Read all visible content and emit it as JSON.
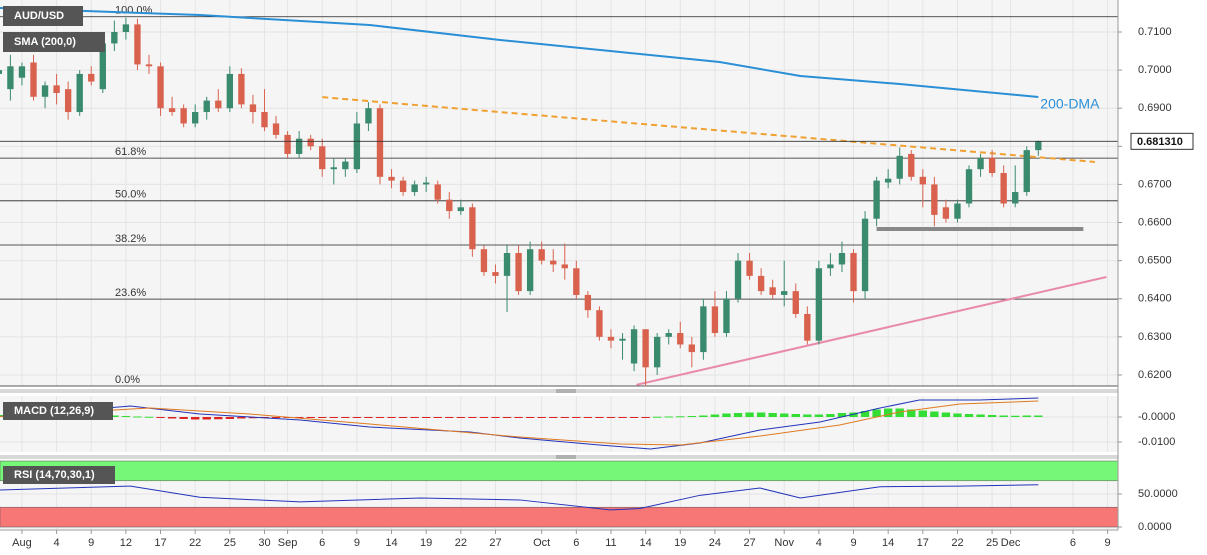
{
  "chart_data": {
    "type": "candlestick",
    "title": "AUD/USD",
    "up_color": "#3a8a6e",
    "down_color": "#d9624e",
    "ylim": [
      0.6171,
      0.7184
    ],
    "yticks": [
      {
        "value": 0.71,
        "label": "0.7100"
      },
      {
        "value": 0.7,
        "label": "0.7000"
      },
      {
        "value": 0.69,
        "label": "0.6900"
      },
      {
        "value": 0.68,
        "label": "0.6800"
      },
      {
        "value": 0.67,
        "label": "0.6700"
      },
      {
        "value": 0.66,
        "label": "0.6600"
      },
      {
        "value": 0.65,
        "label": "0.6500"
      },
      {
        "value": 0.64,
        "label": "0.6400"
      },
      {
        "value": 0.63,
        "label": "0.6300"
      },
      {
        "value": 0.62,
        "label": "0.6200"
      }
    ],
    "xlim": [
      -1.9,
      94.9
    ],
    "xticks": [
      {
        "value": 0,
        "label": "Aug"
      },
      {
        "value": 3,
        "label": "4"
      },
      {
        "value": 6,
        "label": "9"
      },
      {
        "value": 9,
        "label": "12"
      },
      {
        "value": 12,
        "label": "17"
      },
      {
        "value": 15,
        "label": "22"
      },
      {
        "value": 18,
        "label": "25"
      },
      {
        "value": 21,
        "label": "30"
      },
      {
        "value": 23,
        "label": "Sep"
      },
      {
        "value": 26,
        "label": "6"
      },
      {
        "value": 29,
        "label": "9"
      },
      {
        "value": 32,
        "label": "14"
      },
      {
        "value": 35,
        "label": "19"
      },
      {
        "value": 38,
        "label": "22"
      },
      {
        "value": 41,
        "label": "27"
      },
      {
        "value": 45,
        "label": "Oct"
      },
      {
        "value": 48,
        "label": "6"
      },
      {
        "value": 51,
        "label": "11"
      },
      {
        "value": 54,
        "label": "14"
      },
      {
        "value": 57,
        "label": "19"
      },
      {
        "value": 60,
        "label": "24"
      },
      {
        "value": 63,
        "label": "27"
      },
      {
        "value": 66,
        "label": "Nov"
      },
      {
        "value": 69,
        "label": "4"
      },
      {
        "value": 72,
        "label": "9"
      },
      {
        "value": 75,
        "label": "14"
      },
      {
        "value": 78,
        "label": "17"
      },
      {
        "value": 81,
        "label": "22"
      },
      {
        "value": 84,
        "label": "25"
      },
      {
        "value": 85.6,
        "label": "Dec"
      },
      {
        "value": 91,
        "label": "6"
      },
      {
        "value": 94,
        "label": "9"
      }
    ],
    "x": [
      -2,
      -1,
      0,
      1,
      2,
      3,
      4,
      5,
      6,
      7,
      8,
      9,
      10,
      11,
      12,
      13,
      14,
      15,
      16,
      17,
      18,
      19,
      20,
      21,
      22,
      23,
      24,
      25,
      26,
      27,
      28,
      29,
      30,
      31,
      32,
      33,
      34,
      35,
      36,
      37,
      38,
      39,
      40,
      41,
      42,
      43,
      44,
      45,
      46,
      47,
      48,
      49,
      50,
      51,
      52,
      53,
      54,
      55,
      56,
      57,
      58,
      59,
      60,
      61,
      62,
      63,
      64,
      65,
      66,
      67,
      68,
      69,
      70,
      71,
      72,
      73,
      74,
      75,
      76,
      77,
      78,
      79,
      80,
      81,
      82,
      83,
      84,
      85,
      86,
      87,
      88
    ],
    "candles": [
      [
        0.699,
        0.701,
        0.695,
        0.7
      ],
      [
        0.695,
        0.704,
        0.692,
        0.701
      ],
      [
        0.698,
        0.702,
        0.696,
        0.701
      ],
      [
        0.702,
        0.704,
        0.692,
        0.693
      ],
      [
        0.693,
        0.697,
        0.69,
        0.696
      ],
      [
        0.696,
        0.699,
        0.691,
        0.694
      ],
      [
        0.695,
        0.697,
        0.687,
        0.689
      ],
      [
        0.689,
        0.7,
        0.688,
        0.699
      ],
      [
        0.699,
        0.701,
        0.696,
        0.697
      ],
      [
        0.695,
        0.709,
        0.694,
        0.707
      ],
      [
        0.707,
        0.713,
        0.705,
        0.71
      ],
      [
        0.71,
        0.7137,
        0.708,
        0.712
      ],
      [
        0.712,
        0.7135,
        0.7,
        0.7015
      ],
      [
        0.7015,
        0.704,
        0.699,
        0.701
      ],
      [
        0.701,
        0.702,
        0.688,
        0.69
      ],
      [
        0.69,
        0.693,
        0.688,
        0.689
      ],
      [
        0.69,
        0.691,
        0.685,
        0.686
      ],
      [
        0.686,
        0.691,
        0.685,
        0.689
      ],
      [
        0.689,
        0.693,
        0.687,
        0.692
      ],
      [
        0.692,
        0.695,
        0.689,
        0.69
      ],
      [
        0.69,
        0.701,
        0.689,
        0.699
      ],
      [
        0.699,
        0.7005,
        0.69,
        0.691
      ],
      [
        0.691,
        0.6935,
        0.686,
        0.689
      ],
      [
        0.689,
        0.695,
        0.684,
        0.685
      ],
      [
        0.686,
        0.688,
        0.682,
        0.683
      ],
      [
        0.683,
        0.684,
        0.677,
        0.678
      ],
      [
        0.678,
        0.684,
        0.677,
        0.682
      ],
      [
        0.682,
        0.683,
        0.679,
        0.68
      ],
      [
        0.68,
        0.682,
        0.672,
        0.674
      ],
      [
        0.674,
        0.677,
        0.67,
        0.6745
      ],
      [
        0.674,
        0.677,
        0.672,
        0.676
      ],
      [
        0.674,
        0.689,
        0.673,
        0.686
      ],
      [
        0.686,
        0.6916,
        0.684,
        0.69
      ],
      [
        0.69,
        0.691,
        0.67,
        0.672
      ],
      [
        0.672,
        0.674,
        0.669,
        0.671
      ],
      [
        0.671,
        0.672,
        0.667,
        0.668
      ],
      [
        0.668,
        0.671,
        0.667,
        0.67
      ],
      [
        0.67,
        0.672,
        0.668,
        0.6705
      ],
      [
        0.67,
        0.671,
        0.665,
        0.666
      ],
      [
        0.666,
        0.668,
        0.661,
        0.663
      ],
      [
        0.663,
        0.666,
        0.662,
        0.664
      ],
      [
        0.664,
        0.665,
        0.651,
        0.653
      ],
      [
        0.653,
        0.654,
        0.646,
        0.647
      ],
      [
        0.647,
        0.649,
        0.644,
        0.646
      ],
      [
        0.646,
        0.654,
        0.6365,
        0.652
      ],
      [
        0.652,
        0.654,
        0.641,
        0.642
      ],
      [
        0.642,
        0.655,
        0.641,
        0.653
      ],
      [
        0.653,
        0.655,
        0.649,
        0.65
      ],
      [
        0.65,
        0.653,
        0.647,
        0.649
      ],
      [
        0.649,
        0.6545,
        0.645,
        0.648
      ],
      [
        0.648,
        0.65,
        0.64,
        0.641
      ],
      [
        0.641,
        0.642,
        0.635,
        0.637
      ],
      [
        0.637,
        0.638,
        0.629,
        0.63
      ],
      [
        0.63,
        0.632,
        0.627,
        0.629
      ],
      [
        0.629,
        0.631,
        0.624,
        0.6295
      ],
      [
        0.623,
        0.633,
        0.621,
        0.632
      ],
      [
        0.632,
        0.632,
        0.617,
        0.622
      ],
      [
        0.622,
        0.631,
        0.62,
        0.63
      ],
      [
        0.63,
        0.632,
        0.628,
        0.631
      ],
      [
        0.631,
        0.634,
        0.627,
        0.628
      ],
      [
        0.628,
        0.63,
        0.622,
        0.626
      ],
      [
        0.626,
        0.64,
        0.624,
        0.638
      ],
      [
        0.638,
        0.642,
        0.63,
        0.631
      ],
      [
        0.631,
        0.642,
        0.63,
        0.64
      ],
      [
        0.64,
        0.652,
        0.639,
        0.65
      ],
      [
        0.65,
        0.652,
        0.645,
        0.646
      ],
      [
        0.646,
        0.648,
        0.641,
        0.642
      ],
      [
        0.643,
        0.645,
        0.64,
        0.641
      ],
      [
        0.641,
        0.65,
        0.638,
        0.642
      ],
      [
        0.642,
        0.644,
        0.635,
        0.636
      ],
      [
        0.636,
        0.638,
        0.628,
        0.629
      ],
      [
        0.629,
        0.65,
        0.628,
        0.648
      ],
      [
        0.648,
        0.652,
        0.646,
        0.649
      ],
      [
        0.649,
        0.655,
        0.647,
        0.652
      ],
      [
        0.652,
        0.653,
        0.639,
        0.642
      ],
      [
        0.642,
        0.663,
        0.64,
        0.661
      ],
      [
        0.661,
        0.672,
        0.659,
        0.671
      ],
      [
        0.6705,
        0.674,
        0.669,
        0.6715
      ],
      [
        0.6715,
        0.6797,
        0.67,
        0.6775
      ],
      [
        0.678,
        0.679,
        0.671,
        0.672
      ],
      [
        0.672,
        0.674,
        0.664,
        0.67
      ],
      [
        0.67,
        0.672,
        0.659,
        0.662
      ],
      [
        0.664,
        0.666,
        0.66,
        0.661
      ],
      [
        0.661,
        0.666,
        0.66,
        0.665
      ],
      [
        0.665,
        0.675,
        0.664,
        0.674
      ],
      [
        0.674,
        0.678,
        0.672,
        0.677
      ],
      [
        0.677,
        0.679,
        0.672,
        0.673
      ],
      [
        0.673,
        0.675,
        0.664,
        0.665
      ],
      [
        0.665,
        0.675,
        0.664,
        0.668
      ],
      [
        0.668,
        0.68,
        0.667,
        0.679
      ],
      [
        0.679,
        0.6815,
        0.6775,
        0.6813
      ]
    ],
    "sma": {
      "name": "SMA (200,0)",
      "label": "200-DMA",
      "color": "#2a8fd6",
      "x": [
        -1.9,
        15.4,
        30.1,
        41.4,
        51.8,
        60.4,
        67.4,
        76,
        88
      ],
      "values": [
        0.7163,
        0.71446,
        0.71184,
        0.7079,
        0.70475,
        0.70213,
        0.69845,
        0.69636,
        0.69294
      ]
    },
    "fib_levels": [
      {
        "label": "100.0%",
        "value": 0.714
      },
      {
        "label": "61.8%",
        "value": 0.6769
      },
      {
        "label": "50.0%",
        "value": 0.6657
      },
      {
        "label": "38.2%",
        "value": 0.6541
      },
      {
        "label": "23.6%",
        "value": 0.6399
      },
      {
        "label": "0.0%",
        "value": 0.6171
      }
    ],
    "trendlines": [
      {
        "color": "#f0a030",
        "dashed": true,
        "x": [
          26,
          92.9
        ],
        "values": [
          0.6929,
          0.6759
        ]
      },
      {
        "color": "#e88aa8",
        "dashed": false,
        "x": [
          53.2,
          93.9
        ],
        "values": [
          0.6174,
          0.6457
        ]
      },
      {
        "color": "#888888",
        "dashed": false,
        "x": [
          74,
          91.9
        ],
        "values": [
          0.6583,
          0.6583
        ]
      }
    ],
    "last_price": {
      "value": 0.68131,
      "label": "0.681310"
    },
    "macd": {
      "name": "MACD (12,26,9)",
      "ylim": [
        -0.014,
        0.0084
      ],
      "yticks": [
        {
          "value": 0,
          "label": "-0.0000"
        },
        {
          "value": -0.01,
          "label": "-0.0100"
        }
      ],
      "up_color": "#33dd33",
      "down_color": "#dd2222",
      "histogram": [
        0.0008,
        0.001,
        0.0012,
        0.001,
        0.0008,
        0.0006,
        0.0005,
        0.0004,
        0.0006,
        0.0008,
        0.0006,
        0.0004,
        0.0002,
        0.0001,
        -0.0004,
        -0.0006,
        -0.0008,
        -0.001,
        -0.001,
        -0.0009,
        -0.0008,
        -0.0006,
        -0.0005,
        -0.0004,
        -0.0004,
        -0.0003,
        -0.0003,
        -0.0003,
        -0.0002,
        -0.0002,
        -0.0001,
        -0.0001,
        -0.0001,
        -0.0001,
        -0.0002,
        -0.0002,
        -0.0002,
        -0.0002,
        -0.0003,
        -0.0003,
        -0.0003,
        -0.0004,
        -0.0004,
        -0.0004,
        -0.0004,
        -0.0004,
        -0.0003,
        -0.0003,
        -0.0003,
        -0.0003,
        -0.0003,
        -0.0003,
        -0.0003,
        -0.0003,
        -0.0002,
        -0.0002,
        -0.0001,
        0.0001,
        0.0002,
        0.0003,
        0.0004,
        0.0006,
        0.001,
        0.0014,
        0.0016,
        0.0018,
        0.0018,
        0.0016,
        0.0014,
        0.0012,
        0.001,
        0.001,
        0.0012,
        0.0016,
        0.0018,
        0.0024,
        0.003,
        0.0034,
        0.0034,
        0.003,
        0.0026,
        0.0022,
        0.0018,
        0.0014,
        0.0012,
        0.001,
        0.0008,
        0.0006,
        0.0005,
        0.0006,
        0.0006
      ],
      "lines": [
        {
          "color": "#2233bb",
          "x": [
            -1.9,
            9.4,
            15.4,
            24.1,
            30.1,
            38.8,
            43.1,
            50,
            54.4,
            58.7,
            63.9,
            69.1,
            74.3,
            77.7,
            82.9,
            88
          ],
          "values": [
            0.0002,
            0.0044,
            0.0012,
            -0.0012,
            -0.004,
            -0.006,
            -0.0084,
            -0.0112,
            -0.0128,
            -0.0104,
            -0.0052,
            -0.002,
            0.0036,
            0.0068,
            0.0068,
            0.0076
          ]
        },
        {
          "color": "#e07a20",
          "x": [
            -1.9,
            11.1,
            19.7,
            30.1,
            43.1,
            51.8,
            57,
            63.9,
            70.8,
            76,
            81.2,
            88
          ],
          "values": [
            0.0002,
            0.0036,
            0.0012,
            -0.0028,
            -0.008,
            -0.0108,
            -0.0112,
            -0.0076,
            -0.0032,
            0.002,
            0.0052,
            0.0064
          ]
        }
      ]
    },
    "rsi": {
      "name": "RSI (14,70,30,1)",
      "ylim": [
        0,
        100
      ],
      "yticks": [
        {
          "value": 50,
          "label": "50.0000"
        },
        {
          "value": 0,
          "label": "0.0000"
        }
      ],
      "bands": [
        {
          "from": 70,
          "to": 100,
          "color": "#77f777"
        },
        {
          "from": 0,
          "to": 30,
          "color": "#f77777"
        }
      ],
      "color": "#2233bb",
      "x": [
        -1.9,
        9.4,
        15.4,
        24.1,
        34.5,
        43.1,
        50.9,
        53.5,
        58.7,
        63.9,
        67.4,
        74.3,
        81.2,
        88
      ],
      "values": [
        56,
        62,
        45,
        38,
        44,
        41,
        26,
        28,
        48,
        59,
        44,
        61,
        62,
        64
      ]
    }
  }
}
